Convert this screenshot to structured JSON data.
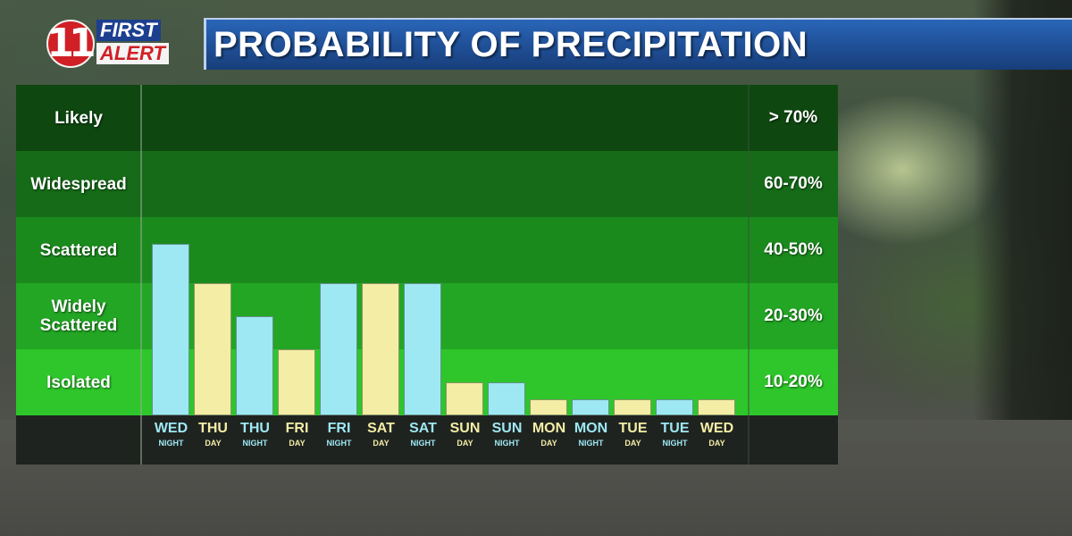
{
  "logo": {
    "number": "11",
    "word1": "FIRST",
    "word2": "ALERT"
  },
  "title": "PROBABILITY OF PRECIPITATION",
  "colors": {
    "night_bar": "#9ee8f3",
    "day_bar": "#f3eda6",
    "band_likely": "#0e4710",
    "band_widespread": "#156b17",
    "band_scattered": "#1b8a1d",
    "band_widely_scattered": "#22a624",
    "band_isolated": "#2ec62b"
  },
  "bands": [
    {
      "label": "Likely",
      "range": "> 70%"
    },
    {
      "label": "Widespread",
      "range": "60-70%"
    },
    {
      "label": "Scattered",
      "range": "40-50%"
    },
    {
      "label": "Widely\nScattered",
      "range": "20-30%"
    },
    {
      "label": "Isolated",
      "range": "10-20%"
    }
  ],
  "chart_data": {
    "type": "bar",
    "categories": [
      {
        "day": "WED",
        "period": "NIGHT"
      },
      {
        "day": "THU",
        "period": "DAY"
      },
      {
        "day": "THU",
        "period": "NIGHT"
      },
      {
        "day": "FRI",
        "period": "DAY"
      },
      {
        "day": "FRI",
        "period": "NIGHT"
      },
      {
        "day": "SAT",
        "period": "DAY"
      },
      {
        "day": "SAT",
        "period": "NIGHT"
      },
      {
        "day": "SUN",
        "period": "DAY"
      },
      {
        "day": "SUN",
        "period": "NIGHT"
      },
      {
        "day": "MON",
        "period": "DAY"
      },
      {
        "day": "MON",
        "period": "NIGHT"
      },
      {
        "day": "TUE",
        "period": "DAY"
      },
      {
        "day": "TUE",
        "period": "NIGHT"
      },
      {
        "day": "WED",
        "period": "DAY"
      }
    ],
    "values": [
      42,
      30,
      25,
      20,
      30,
      30,
      30,
      10,
      10,
      5,
      5,
      5,
      5,
      5
    ],
    "bar_colors": [
      "night",
      "day",
      "night",
      "day",
      "night",
      "day",
      "night",
      "day",
      "night",
      "day",
      "night",
      "day",
      "night",
      "day"
    ],
    "y_scale": "categorical bands: Isolated 10-20%, Widely Scattered 20-30%, Scattered 40-50%, Widespread 60-70%, Likely >70%",
    "ylim": [
      0,
      80
    ],
    "grid": false
  }
}
